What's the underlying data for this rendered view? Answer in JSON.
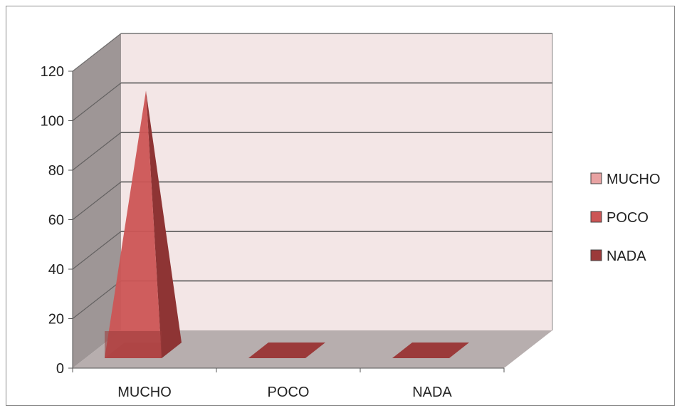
{
  "chart_data": {
    "type": "bar",
    "style": "3d-pyramid",
    "categories": [
      "MUCHO",
      "POCO",
      "NADA"
    ],
    "series": [
      {
        "name": "MUCHO",
        "values": [
          115,
          0,
          0
        ]
      },
      {
        "name": "POCO",
        "values": [
          0,
          0,
          0
        ]
      },
      {
        "name": "NADA",
        "values": [
          0,
          0,
          0
        ]
      }
    ],
    "ylim": [
      0,
      120
    ],
    "yticks": [
      0,
      20,
      40,
      60,
      80,
      100,
      120
    ],
    "grid": true,
    "legend": "right",
    "colors": {
      "wall": "#f3e6e6",
      "side_wall": "#9e9696",
      "floor": "#b7aeae",
      "gridline": "#4a4a4a",
      "MUCHO": "#e8a2a2",
      "POCO": "#cc5555",
      "NADA": "#9b3a3a"
    }
  }
}
